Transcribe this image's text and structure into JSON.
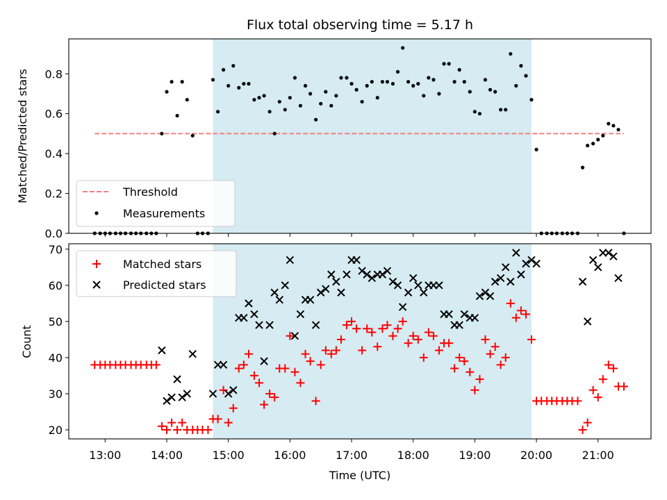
{
  "chart_data": {
    "title": "Flux total observing time = 5.17 h",
    "x_axis": {
      "label": "Time (UTC)",
      "unit": "hours UTC",
      "range": [
        12.41,
        21.86
      ],
      "tick_values": [
        13,
        14,
        15,
        16,
        17,
        18,
        19,
        20,
        21
      ],
      "tick_labels": [
        "13:00",
        "14:00",
        "15:00",
        "16:00",
        "17:00",
        "18:00",
        "19:00",
        "20:00",
        "21:00"
      ]
    },
    "observing_window": {
      "start": 14.75,
      "end": 19.92,
      "color": "#add8e6",
      "opacity": 0.5
    },
    "charts": [
      {
        "type": "scatter",
        "ylabel": "Matched/Predicted stars",
        "ylim": [
          0,
          0.975
        ],
        "ytick_values": [
          0,
          0.2,
          0.4,
          0.6,
          0.8
        ],
        "ytick_labels": [
          "0.0",
          "0.2",
          "0.4",
          "0.6",
          "0.8"
        ],
        "legend_position": "lower-left",
        "series": [
          {
            "name": "Threshold",
            "kind": "dashed-line",
            "color": "#f08080",
            "x": [
              12.83,
              21.42
            ],
            "y": [
              0.5,
              0.5
            ]
          },
          {
            "name": "Measurements",
            "kind": "dots",
            "color": "#000000",
            "x": [
              12.83,
              12.92,
              13.0,
              13.08,
              13.17,
              13.25,
              13.33,
              13.42,
              13.5,
              13.58,
              13.67,
              13.75,
              13.83,
              13.92,
              14.0,
              14.08,
              14.17,
              14.25,
              14.33,
              14.42,
              14.5,
              14.58,
              14.67,
              14.75,
              14.83,
              14.92,
              15.0,
              15.08,
              15.17,
              15.25,
              15.33,
              15.42,
              15.5,
              15.58,
              15.67,
              15.75,
              15.83,
              15.92,
              16.0,
              16.08,
              16.17,
              16.25,
              16.33,
              16.42,
              16.5,
              16.58,
              16.67,
              16.75,
              16.83,
              16.92,
              17.0,
              17.08,
              17.17,
              17.25,
              17.33,
              17.42,
              17.5,
              17.58,
              17.67,
              17.75,
              17.83,
              17.92,
              18.0,
              18.08,
              18.17,
              18.25,
              18.33,
              18.42,
              18.5,
              18.58,
              18.67,
              18.75,
              18.83,
              18.92,
              19.0,
              19.08,
              19.17,
              19.25,
              19.33,
              19.42,
              19.5,
              19.58,
              19.67,
              19.75,
              19.83,
              19.92,
              20.0,
              20.08,
              20.17,
              20.25,
              20.33,
              20.42,
              20.5,
              20.58,
              20.67,
              20.75,
              20.83,
              20.92,
              21.0,
              21.08,
              21.17,
              21.25,
              21.33,
              21.42
            ],
            "y": [
              0.0,
              0.0,
              0.0,
              0.0,
              0.0,
              0.0,
              0.0,
              0.0,
              0.0,
              0.0,
              0.0,
              0.0,
              0.0,
              0.5,
              0.71,
              0.76,
              0.59,
              0.76,
              0.67,
              0.49,
              0.0,
              0.0,
              0.0,
              0.77,
              0.61,
              0.82,
              0.74,
              0.84,
              0.73,
              0.75,
              0.75,
              0.67,
              0.68,
              0.69,
              0.61,
              0.5,
              0.66,
              0.62,
              0.68,
              0.78,
              0.64,
              0.74,
              0.7,
              0.57,
              0.65,
              0.71,
              0.64,
              0.69,
              0.78,
              0.78,
              0.75,
              0.72,
              0.66,
              0.74,
              0.76,
              0.68,
              0.76,
              0.76,
              0.75,
              0.81,
              0.93,
              0.76,
              0.74,
              0.75,
              0.69,
              0.78,
              0.77,
              0.7,
              0.85,
              0.85,
              0.76,
              0.82,
              0.76,
              0.71,
              0.61,
              0.6,
              0.77,
              0.72,
              0.71,
              0.62,
              0.62,
              0.9,
              0.74,
              0.84,
              0.79,
              0.67,
              0.42,
              0.0,
              0.0,
              0.0,
              0.0,
              0.0,
              0.0,
              0.0,
              0.0,
              0.33,
              0.44,
              0.45,
              0.47,
              0.49,
              0.55,
              0.54,
              0.52,
              0.0
            ]
          }
        ]
      },
      {
        "type": "scatter",
        "ylabel": "Count",
        "ylim": [
          17.5,
          71.5
        ],
        "ytick_values": [
          20,
          30,
          40,
          50,
          60,
          70
        ],
        "ytick_labels": [
          "20",
          "30",
          "40",
          "50",
          "60",
          "70"
        ],
        "legend_position": "upper-left",
        "series": [
          {
            "name": "Matched stars",
            "kind": "plus",
            "color": "#ff0000",
            "x": [
              12.83,
              12.92,
              13.0,
              13.08,
              13.17,
              13.25,
              13.33,
              13.42,
              13.5,
              13.58,
              13.67,
              13.75,
              13.83,
              13.92,
              14.0,
              14.08,
              14.17,
              14.25,
              14.33,
              14.42,
              14.5,
              14.58,
              14.67,
              14.75,
              14.83,
              14.92,
              15.0,
              15.08,
              15.17,
              15.25,
              15.33,
              15.42,
              15.5,
              15.58,
              15.67,
              15.75,
              15.83,
              15.92,
              16.0,
              16.08,
              16.17,
              16.25,
              16.33,
              16.42,
              16.5,
              16.58,
              16.67,
              16.75,
              16.83,
              16.92,
              17.0,
              17.08,
              17.17,
              17.25,
              17.33,
              17.42,
              17.5,
              17.58,
              17.67,
              17.75,
              17.83,
              17.92,
              18.0,
              18.08,
              18.17,
              18.25,
              18.33,
              18.42,
              18.5,
              18.58,
              18.67,
              18.75,
              18.83,
              18.92,
              19.0,
              19.08,
              19.17,
              19.25,
              19.33,
              19.42,
              19.5,
              19.58,
              19.67,
              19.75,
              19.83,
              19.92,
              20.0,
              20.08,
              20.17,
              20.25,
              20.33,
              20.42,
              20.5,
              20.58,
              20.67,
              20.75,
              20.83,
              20.92,
              21.0,
              21.08,
              21.17,
              21.25,
              21.33,
              21.42
            ],
            "y": [
              38,
              38,
              38,
              38,
              38,
              38,
              38,
              38,
              38,
              38,
              38,
              38,
              38,
              21,
              20,
              22,
              20,
              22,
              20,
              20,
              20,
              20,
              20,
              23,
              23,
              31,
              22,
              26,
              37,
              38,
              41,
              35,
              33,
              27,
              30,
              29,
              37,
              37,
              46,
              36,
              33,
              41,
              39,
              28,
              38,
              42,
              41,
              42,
              45,
              49,
              50,
              48,
              42,
              48,
              47,
              43,
              48,
              49,
              46,
              48,
              50,
              44,
              46,
              45,
              40,
              47,
              46,
              42,
              44,
              44,
              37,
              40,
              39,
              36,
              31,
              34,
              45,
              41,
              43,
              38,
              40,
              55,
              51,
              53,
              52,
              45,
              28,
              28,
              28,
              28,
              28,
              28,
              28,
              28,
              28,
              20,
              22,
              31,
              29,
              34,
              38,
              37,
              32,
              32
            ]
          },
          {
            "name": "Predicted stars",
            "kind": "x",
            "color": "#000000",
            "x": [
              13.92,
              14.0,
              14.08,
              14.17,
              14.25,
              14.33,
              14.42,
              14.75,
              14.83,
              14.92,
              15.0,
              15.08,
              15.17,
              15.25,
              15.33,
              15.42,
              15.5,
              15.58,
              15.67,
              15.75,
              15.83,
              15.92,
              16.0,
              16.08,
              16.17,
              16.25,
              16.33,
              16.42,
              16.5,
              16.58,
              16.67,
              16.75,
              16.83,
              16.92,
              17.0,
              17.08,
              17.17,
              17.25,
              17.33,
              17.42,
              17.5,
              17.58,
              17.67,
              17.75,
              17.83,
              17.92,
              18.0,
              18.08,
              18.17,
              18.25,
              18.33,
              18.42,
              18.5,
              18.58,
              18.67,
              18.75,
              18.83,
              18.92,
              19.0,
              19.08,
              19.17,
              19.25,
              19.33,
              19.42,
              19.5,
              19.58,
              19.67,
              19.75,
              19.83,
              19.92,
              20.0,
              20.75,
              20.83,
              20.92,
              21.0,
              21.08,
              21.17,
              21.25,
              21.33
            ],
            "y": [
              42,
              28,
              29,
              34,
              29,
              30,
              41,
              30,
              38,
              38,
              30,
              31,
              51,
              51,
              55,
              52,
              49,
              39,
              49,
              58,
              56,
              60,
              67,
              46,
              52,
              56,
              56,
              49,
              58,
              59,
              63,
              61,
              58,
              63,
              67,
              67,
              64,
              63,
              62,
              63,
              63,
              64,
              61,
              60,
              54,
              58,
              62,
              60,
              58,
              60,
              60,
              60,
              52,
              52,
              49,
              49,
              52,
              51,
              51,
              57,
              58,
              57,
              61,
              62,
              65,
              61,
              69,
              63,
              66,
              67,
              66,
              61,
              50,
              67,
              65,
              69,
              69,
              68,
              62
            ]
          }
        ]
      }
    ]
  }
}
